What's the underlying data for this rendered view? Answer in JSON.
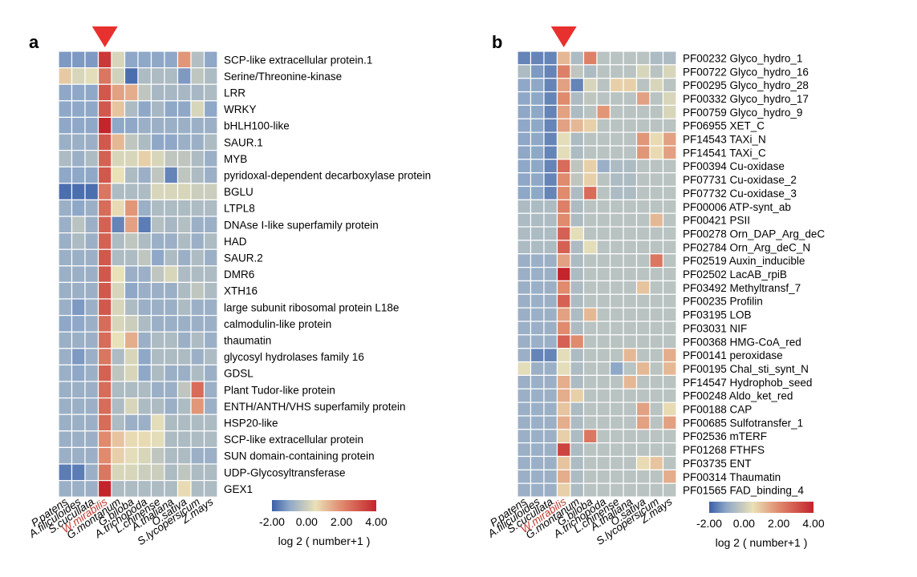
{
  "colors": {
    "low": "#3a5fa8",
    "low_mid": "#8fa8c8",
    "mid": "#e9e1b8",
    "high_mid": "#e08a6e",
    "high": "#c4242c",
    "marker": "#e8312f",
    "highlight_label": "#c0392b",
    "grid_line": "#ffffff"
  },
  "chart_data": [
    {
      "type": "heatmap",
      "panel_label": "a",
      "columns": [
        "P.patens",
        "A.filiculoides",
        "S.cucullata",
        "W.mirabilis",
        "G.montanum",
        "G.biloba",
        "A.trichopoda",
        "L.chinense",
        "A.thaliana",
        "O.sativa",
        "S.lycopersicum",
        "Z.mays"
      ],
      "highlight_column": "W.mirabilis",
      "rows": [
        "SCP-like extracellular protein.1",
        "Serine/Threonine-kinase",
        "LRR",
        "WRKY",
        "bHLH100-like",
        "SAUR.1",
        "MYB",
        "pyridoxal-dependent decarboxylase protein",
        "BGLU",
        "LTPL8",
        "DNAse I-like superfamily protein",
        "HAD",
        "SAUR.2",
        "DMR6",
        "XTH16",
        "large subunit ribosomal protein L18e",
        "calmodulin-like protein",
        "thaumatin",
        "glycosyl hydrolases family 16",
        "GDSL",
        "Plant Tudor-like protein",
        "ENTH/ANTH/VHS superfamily protein",
        "HSP20-like",
        "SCP-like extracellular protein",
        "SUN domain-containing protein",
        "UDP-Glycosyltransferase",
        "GEX1"
      ],
      "values": [
        [
          -1.2,
          -1.2,
          -1.2,
          3.6,
          0.2,
          -1.0,
          -1.0,
          -1.0,
          -1.0,
          1.8,
          -0.4,
          -1.0
        ],
        [
          0.9,
          0.2,
          0.4,
          2.4,
          0.1,
          -1.8,
          -0.5,
          -0.5,
          -0.5,
          -1.2,
          -0.2,
          -0.5
        ],
        [
          -1.0,
          -1.0,
          -1.0,
          3.0,
          1.6,
          1.4,
          -0.2,
          -0.6,
          -0.6,
          -0.6,
          -0.6,
          -0.5
        ],
        [
          -1.0,
          -1.0,
          -1.0,
          3.0,
          1.0,
          -0.5,
          -1.0,
          -0.6,
          -1.0,
          -1.0,
          0.2,
          -1.0
        ],
        [
          -1.0,
          -1.0,
          -1.0,
          4.0,
          -1.0,
          -1.0,
          -0.8,
          -0.8,
          -0.8,
          -0.8,
          -0.8,
          -0.8
        ],
        [
          -0.8,
          -0.8,
          -0.8,
          3.0,
          1.2,
          -0.2,
          -0.5,
          -1.0,
          -1.0,
          -0.8,
          -0.8,
          -0.5
        ],
        [
          -0.5,
          -0.8,
          -0.5,
          2.8,
          0.2,
          0.2,
          0.8,
          0.2,
          -0.2,
          -0.2,
          -0.5,
          -0.8
        ],
        [
          -1.0,
          -1.0,
          -1.0,
          3.0,
          0.5,
          -0.5,
          -0.8,
          -0.2,
          -1.5,
          -0.2,
          -0.5,
          -0.8
        ],
        [
          -1.8,
          -1.8,
          -1.8,
          2.4,
          -0.5,
          -0.5,
          -0.5,
          0.2,
          0.2,
          0.2,
          0.0,
          0.0
        ],
        [
          -0.8,
          -1.0,
          -0.8,
          2.6,
          0.6,
          1.8,
          -0.8,
          -0.5,
          -0.5,
          -0.5,
          -0.5,
          -0.5
        ],
        [
          -0.8,
          -0.3,
          -0.8,
          2.8,
          -1.5,
          1.6,
          -1.6,
          -0.4,
          -0.6,
          -0.4,
          -0.8,
          -0.8
        ],
        [
          -0.8,
          -0.5,
          -0.8,
          2.8,
          -0.5,
          -0.2,
          -0.5,
          -0.8,
          -0.8,
          -0.5,
          -0.8,
          -0.5
        ],
        [
          -0.8,
          -0.8,
          -0.8,
          3.0,
          -0.5,
          -0.5,
          -0.2,
          -1.0,
          -0.5,
          -0.8,
          -0.5,
          -0.8
        ],
        [
          -0.8,
          -0.8,
          -0.8,
          3.0,
          0.5,
          -0.8,
          -0.8,
          -0.2,
          0.2,
          -0.5,
          -0.5,
          -0.5
        ],
        [
          -0.8,
          -0.8,
          -0.8,
          3.0,
          0.2,
          -1.0,
          -0.8,
          -0.8,
          -0.8,
          -0.5,
          -0.2,
          -0.5
        ],
        [
          -0.8,
          -1.2,
          -0.8,
          3.0,
          0.2,
          -0.5,
          -0.8,
          -0.8,
          -0.8,
          -0.5,
          -0.8,
          -0.8
        ],
        [
          -1.0,
          -1.0,
          -0.8,
          2.6,
          0.2,
          0.0,
          -0.5,
          -0.8,
          -0.8,
          -0.8,
          -0.8,
          -0.8
        ],
        [
          -0.8,
          -0.8,
          -0.8,
          2.6,
          0.5,
          1.4,
          -0.8,
          -0.5,
          -0.5,
          -0.8,
          -0.5,
          -0.8
        ],
        [
          -0.8,
          -1.2,
          -0.8,
          2.4,
          -0.5,
          0.2,
          -1.0,
          -0.5,
          -0.5,
          -0.5,
          -0.8,
          -0.5
        ],
        [
          -0.8,
          -1.0,
          -0.8,
          2.8,
          -0.2,
          0.2,
          -1.0,
          -0.5,
          -0.8,
          -0.8,
          -0.5,
          -0.8
        ],
        [
          -0.8,
          -0.8,
          -0.8,
          2.6,
          -0.5,
          -0.5,
          -0.5,
          -0.8,
          -0.8,
          -0.2,
          2.6,
          -0.8
        ],
        [
          -0.8,
          -0.8,
          -0.8,
          2.6,
          -0.5,
          0.2,
          -0.5,
          -0.5,
          -0.8,
          -0.5,
          1.8,
          -0.8
        ],
        [
          -0.8,
          -0.8,
          -0.8,
          2.6,
          -0.5,
          -0.8,
          -0.8,
          0.4,
          -0.5,
          -0.5,
          -0.5,
          -0.5
        ],
        [
          -0.8,
          -0.8,
          -0.8,
          2.0,
          1.0,
          0.6,
          0.6,
          0.4,
          -0.5,
          -0.5,
          -0.5,
          -0.5
        ],
        [
          -0.8,
          -0.8,
          -0.8,
          2.0,
          0.8,
          0.4,
          0.2,
          -0.2,
          -0.5,
          -0.5,
          -0.8,
          -0.8
        ],
        [
          -1.6,
          -1.6,
          -0.8,
          2.4,
          0.2,
          0.2,
          0.0,
          0.0,
          -0.5,
          -0.2,
          -0.5,
          -0.5
        ],
        [
          -0.8,
          -0.8,
          -0.8,
          4.0,
          -0.5,
          -0.5,
          -0.5,
          -0.5,
          -0.5,
          0.6,
          -0.5,
          -0.5
        ]
      ],
      "colorbar": {
        "min": -2.0,
        "max": 4.0,
        "ticks": [
          "-2.00",
          "0.00",
          "2.00",
          "4.00"
        ],
        "label": "log 2 ( number+1 )"
      }
    },
    {
      "type": "heatmap",
      "panel_label": "b",
      "columns": [
        "P.patens",
        "A.filiculoides",
        "S.cucullata",
        "W.mirabilis",
        "G.montanum",
        "G.biloba",
        "A.trichopoda",
        "L.chinense",
        "A.thaliana",
        "O.sativa",
        "S.lycopersicum",
        "Z.mays"
      ],
      "highlight_column": "W.mirabilis",
      "rows": [
        "PF00232 Glyco_hydro_1",
        "PF00722 Glyco_hydro_16",
        "PF00295 Glyco_hydro_28",
        "PF00332 Glyco_hydro_17",
        "PF00759 Glyco_hydro_9",
        "PF06955 XET_C",
        "PF14543 TAXi_N",
        "PF14541 TAXi_C",
        "PF00394 Cu-oxidase",
        "PF07731 Cu-oxidase_2",
        "PF07732 Cu-oxidase_3",
        "PF00006 ATP-synt_ab",
        "PF00421 PSII",
        "PF00278 Orn_DAP_Arg_deC",
        "PF02784 Orn_Arg_deC_N",
        "PF02519 Auxin_inducible",
        "PF02502 LacAB_rpiB",
        "PF03492 Methyltransf_7",
        "PF00235 Profilin",
        "PF03195 LOB",
        "PF03031 NIF",
        "PF00368 HMG-CoA_red",
        "PF00141 peroxidase",
        "PF00195 Chal_sti_synt_N",
        "PF14547 Hydrophob_seed",
        "PF00248 Aldo_ket_red",
        "PF00188 CAP",
        "PF00685 Sulfotransfer_1",
        "PF02536 mTERF",
        "PF01268 FTHFS",
        "PF03735 ENT",
        "PF00314 Thaumatin",
        "PF01565 FAD_binding_4"
      ],
      "values": [
        [
          -1.5,
          -1.5,
          -1.5,
          1.2,
          -0.5,
          2.2,
          -0.3,
          -0.3,
          -0.3,
          -0.3,
          -0.5,
          -0.5
        ],
        [
          -0.5,
          -1.2,
          -1.5,
          2.2,
          -0.2,
          -0.5,
          -0.3,
          -0.3,
          -0.3,
          0.2,
          -0.3,
          0.2
        ],
        [
          -1.0,
          -1.0,
          -1.5,
          1.6,
          -1.5,
          0.2,
          -0.3,
          0.8,
          0.8,
          -0.3,
          0.2,
          -0.3
        ],
        [
          -1.0,
          -1.0,
          -1.5,
          2.0,
          -0.5,
          -0.2,
          -0.3,
          -0.3,
          -0.3,
          1.6,
          -0.3,
          0.2
        ],
        [
          -1.0,
          -1.0,
          -1.5,
          1.6,
          -0.5,
          -0.3,
          1.8,
          -0.3,
          -0.3,
          -0.3,
          -0.3,
          0.2
        ],
        [
          -1.0,
          -1.0,
          -1.5,
          1.6,
          1.2,
          0.8,
          -0.3,
          -0.3,
          -0.3,
          -0.3,
          -0.3,
          -0.3
        ],
        [
          -1.0,
          -1.0,
          -1.5,
          0.4,
          -0.5,
          -0.3,
          -0.3,
          -0.3,
          -0.3,
          1.8,
          0.6,
          1.6
        ],
        [
          -1.0,
          -1.0,
          -1.5,
          0.4,
          -0.5,
          -0.3,
          -0.3,
          -0.3,
          -0.3,
          1.8,
          0.6,
          1.6
        ],
        [
          -1.0,
          -1.0,
          -1.5,
          2.6,
          -0.2,
          0.8,
          -0.8,
          -0.5,
          -0.5,
          -0.3,
          -0.3,
          -0.3
        ],
        [
          -1.0,
          -1.0,
          -1.5,
          2.0,
          -0.2,
          0.8,
          -0.3,
          -0.5,
          -0.5,
          -0.3,
          -0.3,
          -0.3
        ],
        [
          -1.0,
          -1.0,
          -1.5,
          2.0,
          -0.5,
          2.6,
          -0.3,
          -0.5,
          -0.5,
          -0.3,
          -0.3,
          -0.3
        ],
        [
          -0.5,
          -0.5,
          -0.5,
          2.2,
          -0.5,
          -0.3,
          -0.3,
          -0.3,
          -0.3,
          -0.3,
          -0.3,
          -0.3
        ],
        [
          -0.5,
          -0.5,
          -0.5,
          2.0,
          -0.5,
          -0.3,
          -0.3,
          -0.3,
          -0.3,
          -0.3,
          1.2,
          -0.3
        ],
        [
          -0.5,
          -0.5,
          -0.5,
          2.8,
          0.4,
          -0.3,
          -0.3,
          -0.3,
          -0.3,
          -0.3,
          -0.3,
          -0.3
        ],
        [
          -0.5,
          -0.5,
          -0.5,
          2.8,
          -0.5,
          0.4,
          -0.3,
          -0.3,
          -0.3,
          -0.3,
          -0.3,
          -0.3
        ],
        [
          -0.8,
          -0.8,
          -0.8,
          1.6,
          -0.5,
          -0.3,
          -0.3,
          -0.3,
          -0.3,
          -0.3,
          2.4,
          -0.3
        ],
        [
          -0.8,
          -0.8,
          -0.8,
          4.0,
          -0.5,
          -0.3,
          -0.3,
          -0.3,
          -0.3,
          -0.3,
          -0.3,
          -0.3
        ],
        [
          -0.8,
          -0.8,
          -0.8,
          2.0,
          -0.5,
          -0.3,
          -0.3,
          -0.3,
          -0.3,
          1.0,
          -0.3,
          -0.3
        ],
        [
          -0.8,
          -0.8,
          -0.8,
          2.8,
          -0.5,
          -0.3,
          -0.3,
          -0.3,
          -0.3,
          -0.3,
          -0.3,
          -0.3
        ],
        [
          -0.8,
          -0.8,
          -0.8,
          1.6,
          -0.5,
          1.2,
          -0.3,
          -0.3,
          -0.3,
          -0.3,
          -0.3,
          -0.3
        ],
        [
          -0.8,
          -0.8,
          -0.8,
          2.0,
          -0.5,
          -0.3,
          -0.3,
          -0.3,
          -0.3,
          -0.3,
          -0.3,
          -0.3
        ],
        [
          -0.8,
          -0.8,
          -0.8,
          2.8,
          2.0,
          -0.3,
          -0.3,
          -0.3,
          -0.3,
          -0.3,
          -0.3,
          -0.3
        ],
        [
          -0.8,
          -1.5,
          -1.5,
          0.4,
          -0.5,
          -0.3,
          -0.3,
          -0.3,
          1.2,
          -0.3,
          -0.3,
          1.4
        ],
        [
          0.4,
          -0.8,
          -0.8,
          0.4,
          -0.5,
          -0.3,
          -0.3,
          -1.0,
          -0.3,
          1.2,
          -0.3,
          1.2
        ],
        [
          -0.8,
          -0.8,
          -0.8,
          1.4,
          -0.5,
          -0.3,
          -0.3,
          -0.3,
          1.2,
          -0.3,
          -0.3,
          -0.3
        ],
        [
          -0.8,
          -0.8,
          -0.8,
          1.4,
          0.8,
          -0.3,
          -0.3,
          -0.3,
          -0.3,
          -0.3,
          -0.3,
          -0.3
        ],
        [
          -0.8,
          -0.8,
          -0.8,
          1.0,
          -0.5,
          -0.3,
          -0.3,
          -0.3,
          -0.3,
          1.6,
          -0.3,
          0.6
        ],
        [
          -0.8,
          -0.8,
          -0.8,
          1.4,
          -0.5,
          -0.3,
          -0.3,
          -0.3,
          -0.3,
          1.6,
          -0.3,
          1.6
        ],
        [
          -0.8,
          -0.8,
          -0.8,
          0.8,
          -0.5,
          2.4,
          -0.3,
          -0.3,
          -0.3,
          -0.3,
          -0.3,
          -0.3
        ],
        [
          -0.8,
          -0.8,
          -0.8,
          3.4,
          -0.5,
          -0.3,
          -0.3,
          -0.3,
          -0.3,
          -0.3,
          -0.3,
          -0.3
        ],
        [
          -0.8,
          -0.8,
          -0.8,
          1.0,
          -0.5,
          -0.3,
          -0.3,
          -0.3,
          -0.3,
          0.6,
          1.0,
          -0.3
        ],
        [
          -0.8,
          -0.8,
          -0.8,
          1.4,
          -0.5,
          -0.3,
          -0.3,
          -0.3,
          -0.3,
          -0.3,
          -0.3,
          1.4
        ],
        [
          -0.8,
          -0.8,
          -0.8,
          0.8,
          -0.5,
          -0.3,
          -0.3,
          -0.3,
          -0.3,
          -0.3,
          -0.3,
          -0.3
        ]
      ],
      "colorbar": {
        "min": -2.0,
        "max": 4.0,
        "ticks": [
          "-2.00",
          "0.00",
          "2.00",
          "4.00"
        ],
        "label": "log 2 ( number+1 )"
      }
    }
  ]
}
